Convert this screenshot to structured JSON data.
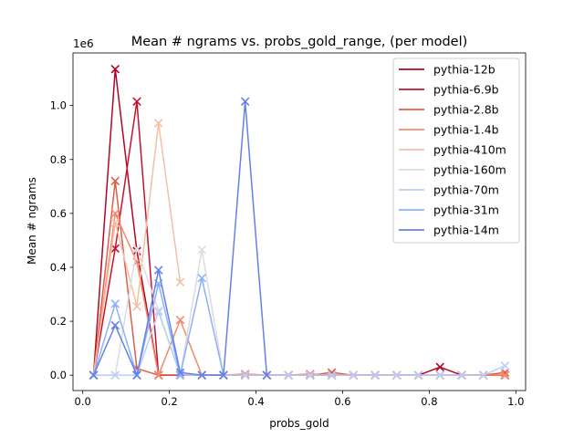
{
  "chart_data": {
    "type": "line",
    "title": "Mean # ngrams vs. probs_gold_range, (per model)",
    "xlabel": "probs_gold",
    "ylabel": "Mean # ngrams",
    "y_offset_text": "1e6",
    "xlim": [
      -0.0225,
      1.0225
    ],
    "ylim": [
      -0.0569,
      1.1951
    ],
    "y_scale_multiplier": 1000000,
    "xticks": [
      0.0,
      0.2,
      0.4,
      0.6,
      0.8,
      1.0
    ],
    "xtick_labels": [
      "0.0",
      "0.2",
      "0.4",
      "0.6",
      "0.8",
      "1.0"
    ],
    "yticks": [
      0.0,
      0.2,
      0.4,
      0.6,
      0.8,
      1.0
    ],
    "ytick_labels": [
      "0.0",
      "0.2",
      "0.4",
      "0.6",
      "0.8",
      "1.0"
    ],
    "grid": false,
    "legend_position": "upper right",
    "marker": "x",
    "series": [
      {
        "name": "pythia-12b",
        "color": "#b40426",
        "x": [
          0.025,
          0.075,
          0.125,
          0.175,
          0.225,
          0.275,
          0.325,
          0.375,
          0.425,
          0.475,
          0.525,
          0.575,
          0.625,
          0.675,
          0.725,
          0.775,
          0.825,
          0.875,
          0.925,
          0.975
        ],
        "y": [
          0.0,
          1.135,
          0.46,
          0.0,
          0.0,
          0.0,
          0.0,
          0.0,
          0.0,
          0.0,
          0.0,
          0.0,
          0.0,
          0.0,
          0.0,
          0.0,
          0.03,
          0.0,
          0.0,
          0.0
        ]
      },
      {
        "name": "pythia-6.9b",
        "color": "#c5122d",
        "x": [
          0.025,
          0.075,
          0.125,
          0.175,
          0.225,
          0.275,
          0.325,
          0.375,
          0.425,
          0.475,
          0.525,
          0.575,
          0.625,
          0.675,
          0.725,
          0.775,
          0.825,
          0.875,
          0.925,
          0.975
        ],
        "y": [
          0.0,
          0.47,
          1.015,
          0.0,
          0.0,
          0.0,
          0.0,
          0.0,
          0.0,
          0.0,
          0.0,
          0.0,
          0.0,
          0.0,
          0.0,
          0.0,
          0.0,
          0.0,
          0.0,
          0.0
        ]
      },
      {
        "name": "pythia-2.8b",
        "color": "#dc5d4a",
        "x": [
          0.025,
          0.075,
          0.125,
          0.175,
          0.225,
          0.275,
          0.325,
          0.375,
          0.425,
          0.475,
          0.525,
          0.575,
          0.625,
          0.675,
          0.725,
          0.775,
          0.825,
          0.875,
          0.925,
          0.975
        ],
        "y": [
          0.0,
          0.72,
          0.025,
          0.0,
          0.0,
          0.0,
          0.0,
          0.0,
          0.0,
          0.0,
          0.0,
          0.01,
          0.0,
          0.0,
          0.0,
          0.0,
          0.0,
          0.0,
          0.0,
          0.01
        ]
      },
      {
        "name": "pythia-1.4b",
        "color": "#f08b6e",
        "x": [
          0.025,
          0.075,
          0.125,
          0.175,
          0.225,
          0.275,
          0.325,
          0.375,
          0.425,
          0.475,
          0.525,
          0.575,
          0.625,
          0.675,
          0.725,
          0.775,
          0.825,
          0.875,
          0.925,
          0.975
        ],
        "y": [
          0.0,
          0.6,
          0.42,
          0.0,
          0.205,
          0.0,
          0.0,
          0.005,
          0.0,
          0.0,
          0.005,
          0.0,
          0.0,
          0.0,
          0.0,
          0.0,
          0.0,
          0.0,
          0.0,
          0.0
        ]
      },
      {
        "name": "pythia-410m",
        "color": "#f4c0a5",
        "x": [
          0.025,
          0.075,
          0.125,
          0.175,
          0.225
        ],
        "y": [
          0.0,
          0.565,
          0.255,
          0.935,
          0.345
        ]
      },
      {
        "name": "pythia-160m",
        "color": "#dddcdc",
        "x": [
          0.025,
          0.075,
          0.125,
          0.175,
          0.225,
          0.275,
          0.325
        ],
        "y": [
          0.0,
          0.0,
          0.47,
          0.24,
          0.0,
          0.465,
          0.0
        ]
      },
      {
        "name": "pythia-70m",
        "color": "#b7cff9",
        "x": [
          0.025,
          0.075,
          0.125,
          0.175,
          0.225,
          0.275,
          0.325,
          0.375,
          0.425,
          0.475,
          0.525,
          0.575,
          0.625,
          0.675,
          0.725,
          0.775,
          0.825,
          0.875,
          0.925,
          0.975
        ],
        "y": [
          0.0,
          0.0,
          0.0,
          0.235,
          0.0,
          0.0,
          0.0,
          0.0,
          0.0,
          0.0,
          0.0,
          0.0,
          0.0,
          0.0,
          0.0,
          0.0,
          0.0,
          0.0,
          0.0,
          0.035
        ]
      },
      {
        "name": "pythia-31m",
        "color": "#8db0fe",
        "x": [
          0.025,
          0.075,
          0.125,
          0.175,
          0.225,
          0.275,
          0.325
        ],
        "y": [
          0.0,
          0.265,
          0.0,
          0.34,
          0.0,
          0.36,
          0.0
        ]
      },
      {
        "name": "pythia-14m",
        "color": "#6282ea",
        "x": [
          0.025,
          0.075,
          0.125,
          0.175,
          0.225,
          0.275,
          0.325,
          0.375,
          0.425
        ],
        "y": [
          0.0,
          0.185,
          0.0,
          0.39,
          0.01,
          0.0,
          0.0,
          1.015,
          0.0
        ]
      }
    ]
  }
}
